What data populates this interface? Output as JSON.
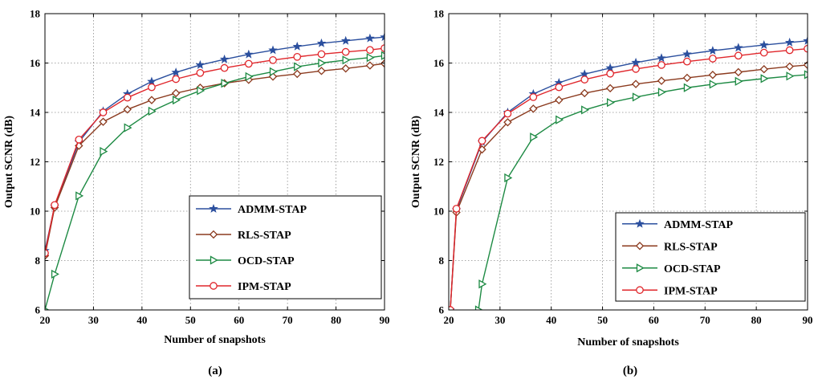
{
  "chart_data": [
    {
      "type": "line",
      "caption": "(a)",
      "xlabel": "Number of snapshots",
      "ylabel": "Output SCNR (dB)",
      "xlim": [
        20,
        90
      ],
      "ylim": [
        6,
        18
      ],
      "xticks": [
        20,
        30,
        40,
        50,
        60,
        70,
        80,
        90
      ],
      "yticks": [
        6,
        8,
        10,
        12,
        14,
        16,
        18
      ],
      "grid": true,
      "legend_position": "bottom-right",
      "series": [
        {
          "name": "ADMM-STAP",
          "marker": "star",
          "color": "#2b4f9e",
          "x": [
            20,
            22,
            27,
            32,
            37,
            42,
            47,
            52,
            57,
            62,
            67,
            72,
            77,
            82,
            87,
            90
          ],
          "y": [
            8.4,
            10.2,
            12.8,
            14.05,
            14.75,
            15.25,
            15.62,
            15.92,
            16.15,
            16.35,
            16.52,
            16.67,
            16.8,
            16.9,
            17.0,
            17.05
          ]
        },
        {
          "name": "RLS-STAP",
          "marker": "diamond",
          "color": "#8b3a1e",
          "x": [
            20,
            22,
            27,
            32,
            37,
            42,
            47,
            52,
            57,
            62,
            67,
            72,
            77,
            82,
            87,
            90
          ],
          "y": [
            8.2,
            10.15,
            12.65,
            13.62,
            14.12,
            14.5,
            14.78,
            15.0,
            15.18,
            15.32,
            15.45,
            15.56,
            15.68,
            15.78,
            15.9,
            15.98
          ]
        },
        {
          "name": "OCD-STAP",
          "marker": "triangle-right",
          "color": "#1d8a43",
          "x": [
            20,
            22,
            27,
            32,
            37,
            42,
            47,
            52,
            57,
            62,
            67,
            72,
            77,
            82,
            87,
            90
          ],
          "y": [
            6.0,
            7.45,
            10.62,
            12.42,
            13.38,
            14.05,
            14.5,
            14.88,
            15.18,
            15.45,
            15.65,
            15.85,
            16.0,
            16.12,
            16.22,
            16.3
          ]
        },
        {
          "name": "IPM-STAP",
          "marker": "circle",
          "color": "#e0262b",
          "x": [
            20,
            22,
            27,
            32,
            37,
            42,
            47,
            52,
            57,
            62,
            67,
            72,
            77,
            82,
            87,
            90
          ],
          "y": [
            8.3,
            10.25,
            12.9,
            14.0,
            14.6,
            15.02,
            15.35,
            15.6,
            15.8,
            15.97,
            16.12,
            16.25,
            16.36,
            16.45,
            16.53,
            16.6
          ]
        }
      ]
    },
    {
      "type": "line",
      "caption": "(b)",
      "xlabel": "Number of snapshots",
      "ylabel": "Output SCNR (dB)",
      "xlim": [
        20,
        90
      ],
      "ylim": [
        6,
        18
      ],
      "xticks": [
        20,
        30,
        40,
        50,
        60,
        70,
        80,
        90
      ],
      "yticks": [
        6,
        8,
        10,
        12,
        14,
        16,
        18
      ],
      "grid": true,
      "legend_position": "bottom-right",
      "series": [
        {
          "name": "ADMM-STAP",
          "marker": "star",
          "color": "#2b4f9e",
          "x": [
            20.3,
            21.5,
            26.5,
            31.5,
            36.5,
            41.5,
            46.5,
            51.5,
            56.5,
            61.5,
            66.5,
            71.5,
            76.5,
            81.5,
            86.5,
            90
          ],
          "y": [
            6.0,
            10.05,
            12.8,
            14.0,
            14.75,
            15.2,
            15.55,
            15.8,
            16.02,
            16.2,
            16.36,
            16.5,
            16.62,
            16.73,
            16.83,
            16.9
          ]
        },
        {
          "name": "RLS-STAP",
          "marker": "diamond",
          "color": "#8b3a1e",
          "x": [
            20.3,
            21.5,
            26.5,
            31.5,
            36.5,
            41.5,
            46.5,
            51.5,
            56.5,
            61.5,
            66.5,
            71.5,
            76.5,
            81.5,
            86.5,
            90
          ],
          "y": [
            6.0,
            9.95,
            12.5,
            13.6,
            14.15,
            14.5,
            14.78,
            14.98,
            15.15,
            15.28,
            15.4,
            15.52,
            15.63,
            15.75,
            15.86,
            15.92
          ]
        },
        {
          "name": "OCD-STAP",
          "marker": "triangle-right",
          "color": "#1d8a43",
          "x": [
            25.8,
            26.5,
            31.5,
            36.5,
            41.5,
            46.5,
            51.5,
            56.5,
            61.5,
            66.5,
            71.5,
            76.5,
            81.5,
            86.5,
            90
          ],
          "y": [
            6.0,
            7.05,
            11.35,
            13.0,
            13.7,
            14.1,
            14.4,
            14.62,
            14.82,
            15.0,
            15.14,
            15.26,
            15.37,
            15.47,
            15.53
          ]
        },
        {
          "name": "IPM-STAP",
          "marker": "circle",
          "color": "#e0262b",
          "x": [
            20.3,
            21.5,
            26.5,
            31.5,
            36.5,
            41.5,
            46.5,
            51.5,
            56.5,
            61.5,
            66.5,
            71.5,
            76.5,
            81.5,
            86.5,
            90
          ],
          "y": [
            6.0,
            10.1,
            12.85,
            13.95,
            14.62,
            15.02,
            15.33,
            15.57,
            15.76,
            15.92,
            16.06,
            16.18,
            16.3,
            16.42,
            16.52,
            16.58
          ]
        }
      ]
    }
  ]
}
